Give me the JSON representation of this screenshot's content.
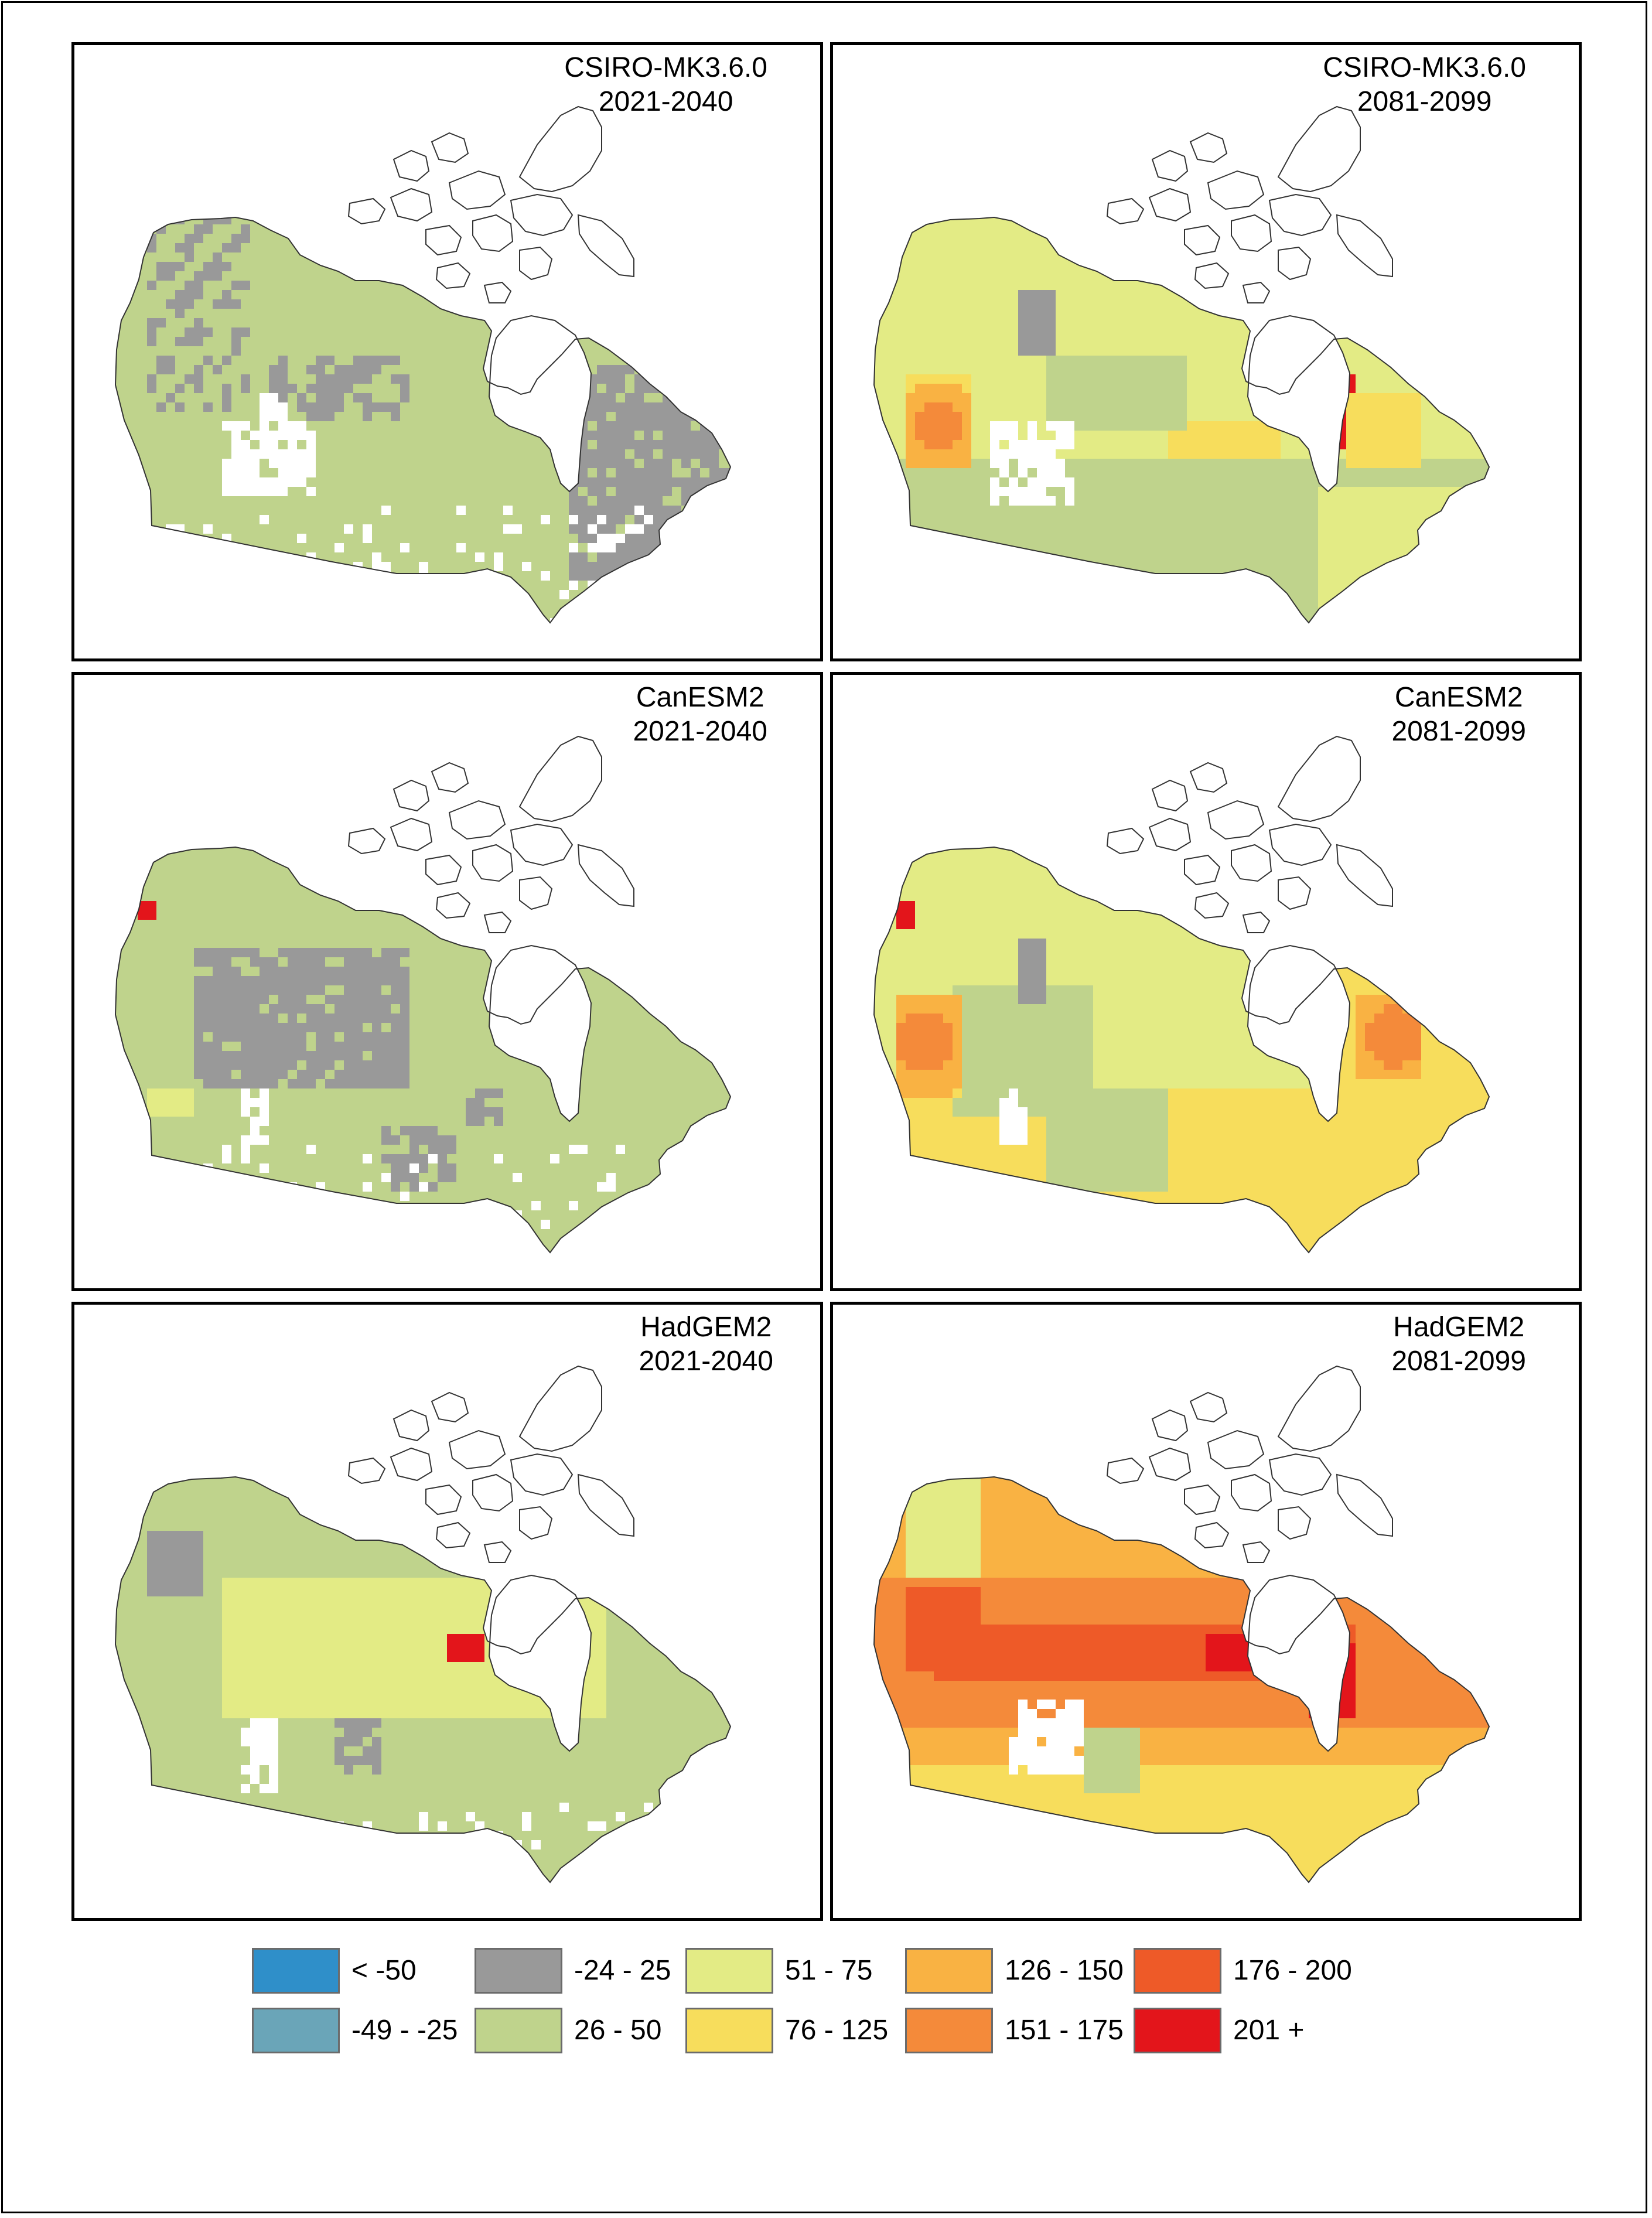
{
  "panels": [
    {
      "model": "CSIRO-MK3.6.0",
      "period": "2021-2040",
      "scenario": "csiro_near"
    },
    {
      "model": "CSIRO-MK3.6.0",
      "period": "2081-2099",
      "scenario": "csiro_far"
    },
    {
      "model": "CanESM2",
      "period": "2021-2040",
      "scenario": "canesm_near"
    },
    {
      "model": "CanESM2",
      "period": "2081-2099",
      "scenario": "canesm_far"
    },
    {
      "model": "HadGEM2",
      "period": "2021-2040",
      "scenario": "hadgem_near"
    },
    {
      "model": "HadGEM2",
      "period": "2081-2099",
      "scenario": "hadgem_far"
    }
  ],
  "legend": [
    {
      "label": "< -50",
      "color": "#2f8fc9"
    },
    {
      "label": "-49 - -25",
      "color": "#6aa5b8"
    },
    {
      "label": "-24 - 25",
      "color": "#999999"
    },
    {
      "label": "26 - 50",
      "color": "#bfd38c"
    },
    {
      "label": "51 - 75",
      "color": "#e3eb85"
    },
    {
      "label": "76 - 125",
      "color": "#f7dd5c"
    },
    {
      "label": "126 - 150",
      "color": "#f9b243"
    },
    {
      "label": "151 - 175",
      "color": "#f48a3a"
    },
    {
      "label": "176 - 200",
      "color": "#ee5a28"
    },
    {
      "label": "201 +",
      "color": "#e3151b"
    }
  ]
}
